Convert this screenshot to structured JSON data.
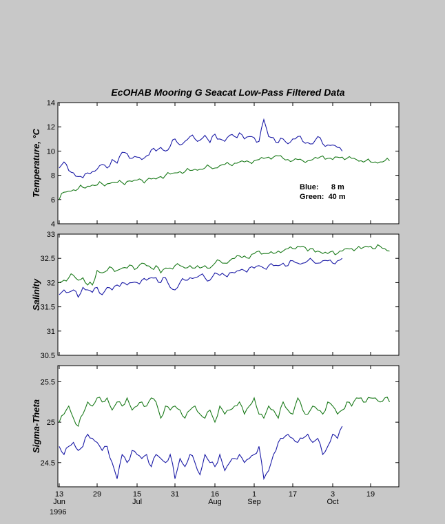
{
  "title": "EcOHAB Mooring G  Seacat Low-Pass Filtered Data",
  "colors": {
    "blue": "#1a1aa6",
    "green": "#1a7a1a",
    "background": "#c8c8c8"
  },
  "legend": {
    "blue": "Blue:      8 m",
    "green": "Green:  40 m"
  },
  "x_axis": {
    "range_days": [
      13,
      135
    ],
    "ticks": [
      {
        "day": 13,
        "label": "13"
      },
      {
        "day": 29,
        "label": "29"
      },
      {
        "day": 45,
        "label": "15"
      },
      {
        "day": 61,
        "label": "31"
      },
      {
        "day": 77,
        "label": "16"
      },
      {
        "day": 93,
        "label": "1"
      },
      {
        "day": 109,
        "label": "17"
      },
      {
        "day": 125,
        "label": "3"
      },
      {
        "day": 141,
        "label": "19"
      }
    ],
    "months": [
      {
        "day": 13,
        "label": "Jun"
      },
      {
        "day": 45,
        "label": "Jul"
      },
      {
        "day": 77,
        "label": "Aug"
      },
      {
        "day": 93,
        "label": "Sep"
      },
      {
        "day": 125,
        "label": "Oct"
      }
    ],
    "year": "1996"
  },
  "chart_data": [
    {
      "type": "line",
      "ylabel": "Temperature, °C",
      "ylim": [
        4,
        14
      ],
      "yticks": [
        "4",
        "6",
        "8",
        "10",
        "12",
        "14"
      ],
      "series": [
        {
          "name": "Blue: 8 m",
          "color": "#1a1aa6",
          "x": [
            13,
            15,
            17,
            19,
            21,
            23,
            25,
            27,
            29,
            31,
            33,
            35,
            37,
            39,
            41,
            43,
            45,
            47,
            49,
            51,
            53,
            55,
            57,
            59,
            61,
            63,
            65,
            67,
            69,
            71,
            73,
            75,
            77,
            79,
            81,
            83,
            85,
            87,
            89,
            91,
            93,
            95,
            97,
            99,
            101,
            103,
            105,
            107,
            109,
            111,
            113,
            115,
            117,
            119,
            121,
            123,
            125,
            127,
            129
          ],
          "y": [
            8.6,
            9.1,
            8.4,
            8.2,
            7.9,
            7.8,
            8.2,
            8.3,
            8.5,
            8.9,
            8.6,
            9.3,
            9.0,
            9.9,
            9.8,
            9.4,
            9.5,
            9.3,
            9.6,
            10.1,
            10.0,
            10.3,
            10.0,
            10.4,
            11.0,
            10.5,
            10.8,
            11.2,
            11.0,
            10.9,
            11.3,
            10.7,
            11.4,
            11.0,
            10.8,
            11.3,
            11.2,
            11.5,
            11.0,
            11.2,
            11.1,
            10.8,
            12.6,
            11.2,
            11.1,
            10.7,
            11.0,
            10.6,
            11.0,
            11.2,
            10.8,
            10.7,
            10.6,
            11.2,
            10.6,
            10.5,
            10.5,
            10.3,
            10.0
          ]
        },
        {
          "name": "Green: 40 m",
          "color": "#1a7a1a",
          "x": [
            13,
            15,
            17,
            19,
            21,
            23,
            25,
            27,
            29,
            31,
            33,
            35,
            37,
            39,
            41,
            43,
            45,
            47,
            49,
            51,
            53,
            55,
            57,
            59,
            61,
            63,
            65,
            67,
            69,
            71,
            73,
            75,
            77,
            79,
            81,
            83,
            85,
            87,
            89,
            91,
            93,
            95,
            97,
            99,
            101,
            103,
            105,
            107,
            109,
            111,
            113,
            115,
            117,
            119,
            121,
            123,
            125,
            127,
            129,
            131,
            133,
            135,
            137,
            139,
            141,
            143,
            145,
            147,
            149
          ],
          "y": [
            6.0,
            6.6,
            6.7,
            6.8,
            6.9,
            7.0,
            7.1,
            7.2,
            7.2,
            7.3,
            7.3,
            7.4,
            7.4,
            7.4,
            7.5,
            7.5,
            7.6,
            7.6,
            7.6,
            7.7,
            7.7,
            7.9,
            8.0,
            8.1,
            8.2,
            8.3,
            8.3,
            8.4,
            8.5,
            8.5,
            8.6,
            8.7,
            8.6,
            8.8,
            8.9,
            8.9,
            9.0,
            9.1,
            9.1,
            9.1,
            9.2,
            9.3,
            9.4,
            9.5,
            9.5,
            9.6,
            9.4,
            9.3,
            9.2,
            9.3,
            9.2,
            9.2,
            9.3,
            9.4,
            9.6,
            9.4,
            9.3,
            9.5,
            9.5,
            9.4,
            9.4,
            9.3,
            9.2,
            9.2,
            9.1,
            9.1,
            9.1,
            9.2,
            9.2
          ]
        }
      ]
    },
    {
      "type": "line",
      "ylabel": "Salinity",
      "ylim": [
        30.5,
        33
      ],
      "yticks": [
        "30.5",
        "31",
        "31.5",
        "32",
        "32.5",
        "33"
      ],
      "series": [
        {
          "name": "Blue: 8 m",
          "color": "#1a1aa6",
          "x": [
            13,
            15,
            17,
            19,
            21,
            23,
            25,
            27,
            29,
            31,
            33,
            35,
            37,
            39,
            41,
            43,
            45,
            47,
            49,
            51,
            53,
            55,
            57,
            59,
            61,
            63,
            65,
            67,
            69,
            71,
            73,
            75,
            77,
            79,
            81,
            83,
            85,
            87,
            89,
            91,
            93,
            95,
            97,
            99,
            101,
            103,
            105,
            107,
            109,
            111,
            113,
            115,
            117,
            119,
            121,
            123,
            125,
            127,
            129
          ],
          "y": [
            31.75,
            31.85,
            31.8,
            31.85,
            31.7,
            31.9,
            31.85,
            31.8,
            31.9,
            31.75,
            31.9,
            31.85,
            31.95,
            32.0,
            31.95,
            32.0,
            32.0,
            32.05,
            32.05,
            32.1,
            32.1,
            32.0,
            32.1,
            31.9,
            31.85,
            32.0,
            32.05,
            32.1,
            32.1,
            32.15,
            32.1,
            32.05,
            32.2,
            32.15,
            32.15,
            32.2,
            32.2,
            32.25,
            32.25,
            32.3,
            32.3,
            32.35,
            32.3,
            32.35,
            32.35,
            32.35,
            32.4,
            32.35,
            32.45,
            32.4,
            32.4,
            32.45,
            32.45,
            32.4,
            32.45,
            32.45,
            32.4,
            32.45,
            32.5
          ]
        },
        {
          "name": "Green: 40 m",
          "color": "#1a7a1a",
          "x": [
            13,
            15,
            17,
            19,
            21,
            23,
            25,
            27,
            29,
            31,
            33,
            35,
            37,
            39,
            41,
            43,
            45,
            47,
            49,
            51,
            53,
            55,
            57,
            59,
            61,
            63,
            65,
            67,
            69,
            71,
            73,
            75,
            77,
            79,
            81,
            83,
            85,
            87,
            89,
            91,
            93,
            95,
            97,
            99,
            101,
            103,
            105,
            107,
            109,
            111,
            113,
            115,
            117,
            119,
            121,
            123,
            125,
            127,
            129,
            131,
            133,
            135,
            137,
            139,
            141,
            143,
            145,
            147,
            149
          ],
          "y": [
            32.0,
            32.05,
            32.1,
            32.15,
            32.05,
            32.1,
            31.95,
            31.95,
            32.25,
            32.2,
            32.25,
            32.3,
            32.25,
            32.3,
            32.3,
            32.35,
            32.3,
            32.4,
            32.35,
            32.3,
            32.35,
            32.2,
            32.3,
            32.3,
            32.35,
            32.35,
            32.3,
            32.35,
            32.3,
            32.3,
            32.35,
            32.3,
            32.4,
            32.45,
            32.4,
            32.45,
            32.5,
            32.55,
            32.55,
            32.5,
            32.6,
            32.65,
            32.6,
            32.6,
            32.6,
            32.65,
            32.65,
            32.7,
            32.7,
            32.75,
            32.75,
            32.65,
            32.7,
            32.65,
            32.6,
            32.6,
            32.65,
            32.6,
            32.65,
            32.7,
            32.7,
            32.7,
            32.7,
            32.75,
            32.75,
            32.7,
            32.75,
            32.7,
            32.65
          ]
        }
      ]
    },
    {
      "type": "line",
      "ylabel": "Sigma-Theta",
      "ylim": [
        24.2,
        25.7
      ],
      "yticks": [
        "24.5",
        "25",
        "25.5"
      ],
      "ytick_values": [
        24.5,
        25,
        25.5
      ],
      "series": [
        {
          "name": "Blue: 8 m",
          "color": "#1a1aa6",
          "x": [
            13,
            15,
            17,
            19,
            21,
            23,
            25,
            27,
            29,
            31,
            33,
            35,
            37,
            39,
            41,
            43,
            45,
            47,
            49,
            51,
            53,
            55,
            57,
            59,
            61,
            63,
            65,
            67,
            69,
            71,
            73,
            75,
            77,
            79,
            81,
            83,
            85,
            87,
            89,
            91,
            93,
            95,
            97,
            99,
            101,
            103,
            105,
            107,
            109,
            111,
            113,
            115,
            117,
            119,
            121,
            123,
            125,
            127,
            129
          ],
          "y": [
            24.7,
            24.6,
            24.7,
            24.75,
            24.65,
            24.7,
            24.85,
            24.8,
            24.75,
            24.65,
            24.7,
            24.5,
            24.3,
            24.6,
            24.5,
            24.65,
            24.6,
            24.55,
            24.6,
            24.45,
            24.6,
            24.55,
            24.5,
            24.6,
            24.3,
            24.55,
            24.45,
            24.6,
            24.5,
            24.35,
            24.6,
            24.5,
            24.45,
            24.6,
            24.4,
            24.5,
            24.55,
            24.6,
            24.5,
            24.55,
            24.6,
            24.7,
            24.3,
            24.4,
            24.6,
            24.75,
            24.8,
            24.85,
            24.8,
            24.75,
            24.8,
            24.85,
            24.75,
            24.8,
            24.6,
            24.7,
            24.85,
            24.8,
            24.95
          ]
        },
        {
          "name": "Green: 40 m",
          "color": "#1a7a1a",
          "x": [
            13,
            15,
            17,
            19,
            21,
            23,
            25,
            27,
            29,
            31,
            33,
            35,
            37,
            39,
            41,
            43,
            45,
            47,
            49,
            51,
            53,
            55,
            57,
            59,
            61,
            63,
            65,
            67,
            69,
            71,
            73,
            75,
            77,
            79,
            81,
            83,
            85,
            87,
            89,
            91,
            93,
            95,
            97,
            99,
            101,
            103,
            105,
            107,
            109,
            111,
            113,
            115,
            117,
            119,
            121,
            123,
            125,
            127,
            129,
            131,
            133,
            135,
            137,
            139,
            141,
            143,
            145,
            147,
            149
          ],
          "y": [
            25.0,
            25.1,
            25.2,
            25.05,
            24.95,
            25.1,
            25.25,
            25.2,
            25.3,
            25.25,
            25.3,
            25.15,
            25.25,
            25.2,
            25.3,
            25.15,
            25.2,
            25.25,
            25.2,
            25.3,
            25.25,
            25.05,
            25.2,
            25.15,
            25.2,
            25.15,
            25.05,
            25.15,
            25.2,
            25.1,
            25.05,
            25.15,
            25.0,
            25.2,
            25.1,
            25.15,
            25.2,
            25.25,
            25.1,
            25.2,
            25.3,
            25.1,
            25.05,
            25.2,
            25.15,
            25.05,
            25.25,
            25.15,
            25.1,
            25.3,
            25.15,
            25.1,
            25.2,
            25.15,
            25.1,
            25.25,
            25.2,
            25.1,
            25.15,
            25.25,
            25.2,
            25.3,
            25.3,
            25.25,
            25.3,
            25.3,
            25.25,
            25.3,
            25.25
          ]
        }
      ]
    }
  ]
}
